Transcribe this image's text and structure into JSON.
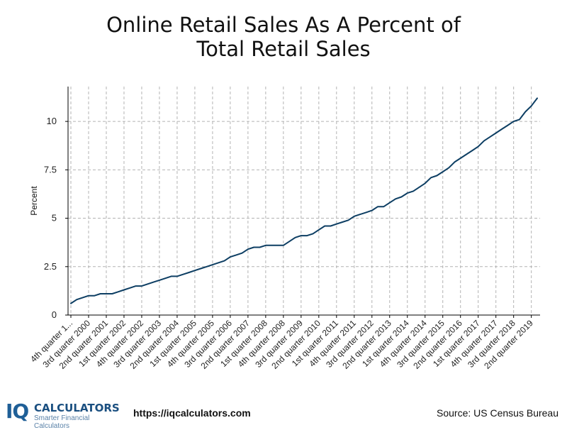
{
  "title_line1": "Online Retail Sales As A Percent of",
  "title_line2": "Total Retail Sales",
  "footer": {
    "logo_mark": "IQ",
    "logo_name": "CALCULATORS",
    "logo_tagline": "Smarter Financial Calculators",
    "url": "https://iqcalculators.com",
    "source": "Source: US Census Bureau"
  },
  "colors": {
    "line": "#0d3e63",
    "grid": "#b3b3b3",
    "axis": "#000000"
  },
  "chart_data": {
    "type": "line",
    "ylabel": "Percent",
    "xlabel": "",
    "ylim": [
      0,
      11.8
    ],
    "yticks": [
      0,
      2.5,
      5,
      7.5,
      10
    ],
    "ytick_labels": [
      "0",
      "2.5",
      "5",
      "7.5",
      "10"
    ],
    "grid": true,
    "xtick_labels": [
      "4th quarter 1...",
      "3rd quarter 2000",
      "2nd quarter 2001",
      "1st quarter 2002",
      "4th quarter 2002",
      "3rd quarter 2003",
      "2nd quarter 2004",
      "1st quarter 2005",
      "4th quarter 2005",
      "3rd quarter 2006",
      "2nd quarter 2007",
      "1st quarter 2008",
      "4th quarter 2008",
      "3rd quarter 2009",
      "2nd quarter 2010",
      "1st quarter 2011",
      "4th quarter 2011",
      "3rd quarter 2012",
      "2nd quarter 2013",
      "1st quarter 2014",
      "4th quarter 2014",
      "3rd quarter 2015",
      "2nd quarter 2016",
      "1st quarter 2017",
      "4th quarter 2017",
      "3rd quarter 2018",
      "2nd quarter 2019"
    ],
    "xtick_every": 3,
    "series": [
      {
        "values": [
          0.6,
          0.8,
          0.9,
          1.0,
          1.0,
          1.1,
          1.1,
          1.1,
          1.2,
          1.3,
          1.4,
          1.5,
          1.5,
          1.6,
          1.7,
          1.8,
          1.9,
          2.0,
          2.0,
          2.1,
          2.2,
          2.3,
          2.4,
          2.5,
          2.6,
          2.7,
          2.8,
          3.0,
          3.1,
          3.2,
          3.4,
          3.5,
          3.5,
          3.6,
          3.6,
          3.6,
          3.6,
          3.8,
          4.0,
          4.1,
          4.1,
          4.2,
          4.4,
          4.6,
          4.6,
          4.7,
          4.8,
          4.9,
          5.1,
          5.2,
          5.3,
          5.4,
          5.6,
          5.6,
          5.8,
          6.0,
          6.1,
          6.3,
          6.4,
          6.6,
          6.8,
          7.1,
          7.2,
          7.4,
          7.6,
          7.9,
          8.1,
          8.3,
          8.5,
          8.7,
          9.0,
          9.2,
          9.4,
          9.6,
          9.8,
          10.0,
          10.1,
          10.5,
          10.8,
          11.2
        ]
      }
    ]
  }
}
